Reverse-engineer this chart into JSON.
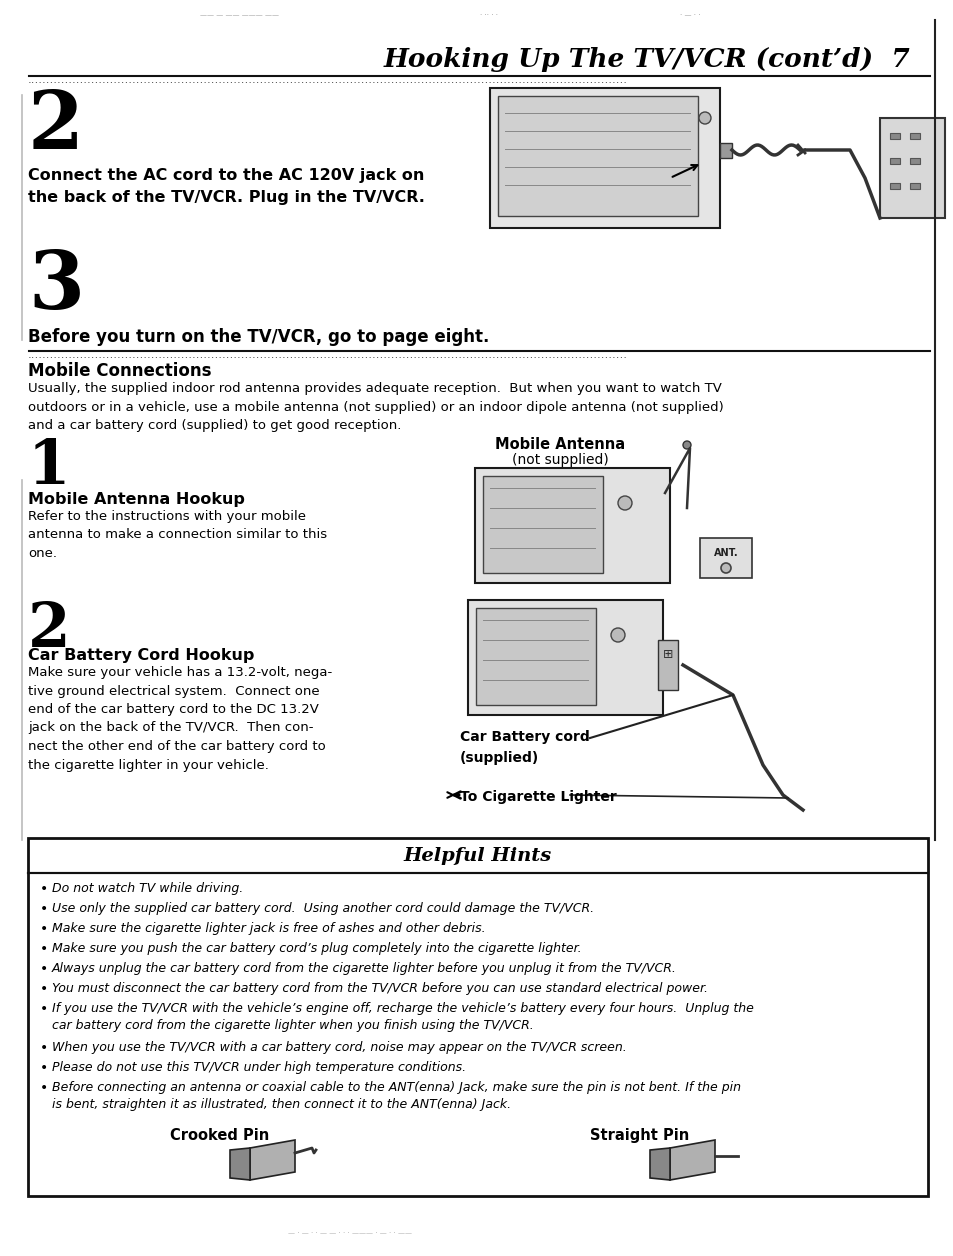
{
  "bg_color": "#ffffff",
  "title": "Hooking Up The TV/VCR (cont’d)  7",
  "dots_line": "••••••••••••••••••••••••••••••••••••••••••••••••••••••••••••••••••••••••••••••••••••••••••••••••••••••••••••••••••••••••••••",
  "section2_num": "2",
  "section2_text": "Connect the AC cord to the AC 120V jack on\nthe back of the TV/VCR. Plug in the TV/VCR.",
  "section3_num": "3",
  "section3_text": "Before you turn on the TV/VCR, go to page eight.",
  "mobile_title": "Mobile Connections",
  "mobile_body": "Usually, the supplied indoor rod antenna provides adequate reception.  But when you want to watch TV\noutdoors or in a vehicle, use a mobile antenna (not supplied) or an indoor dipole antenna (not supplied)\nand a car battery cord (supplied) to get good reception.",
  "step1_num": "1",
  "step1_title": "Mobile Antenna Hookup",
  "step1_body": "Refer to the instructions with your mobile\nantenna to make a connection similar to this\none.",
  "mobile_antenna_label1": "Mobile Antenna",
  "mobile_antenna_label2": "(not supplied)",
  "step2_num": "2",
  "step2_title": "Car Battery Cord Hookup",
  "step2_body": "Make sure your vehicle has a 13.2-volt, nega-\ntive ground electrical system.  Connect one\nend of the car battery cord to the DC 13.2V\njack on the back of the TV/VCR.  Then con-\nnect the other end of the car battery cord to\nthe cigarette lighter in your vehicle.",
  "car_battery_label": "Car Battery cord\n(supplied)",
  "cigarette_label": "To Cigarette Lighter",
  "hints_title": "Helpful Hints",
  "hints": [
    "Do not watch TV while driving.",
    "Use only the supplied car battery cord.  Using another cord could damage the TV/VCR.",
    "Make sure the cigarette lighter jack is free of ashes and other debris.",
    "Make sure you push the car battery cord’s plug completely into the cigarette lighter.",
    "Always unplug the car battery cord from the cigarette lighter before you unplug it from the TV/VCR.",
    "You must disconnect the car battery cord from the TV/VCR before you can use standard electrical power.",
    "If you use the TV/VCR with the vehicle’s engine off, recharge the vehicle’s battery every four hours.  Unplug the\ncar battery cord from the cigarette lighter when you finish using the TV/VCR.",
    "When you use the TV/VCR with a car battery cord, noise may appear on the TV/VCR screen.",
    "Please do not use this TV/VCR under high temperature conditions.",
    "Before connecting an antenna or coaxial cable to the ANT(enna) Jack, make sure the pin is not bent. If the pin\nis bent, straighten it as illustrated, then connect it to the ANT(enna) Jack."
  ],
  "crooked_pin_label": "Crooked Pin",
  "straight_pin_label": "Straight Pin",
  "text_color": "#000000"
}
